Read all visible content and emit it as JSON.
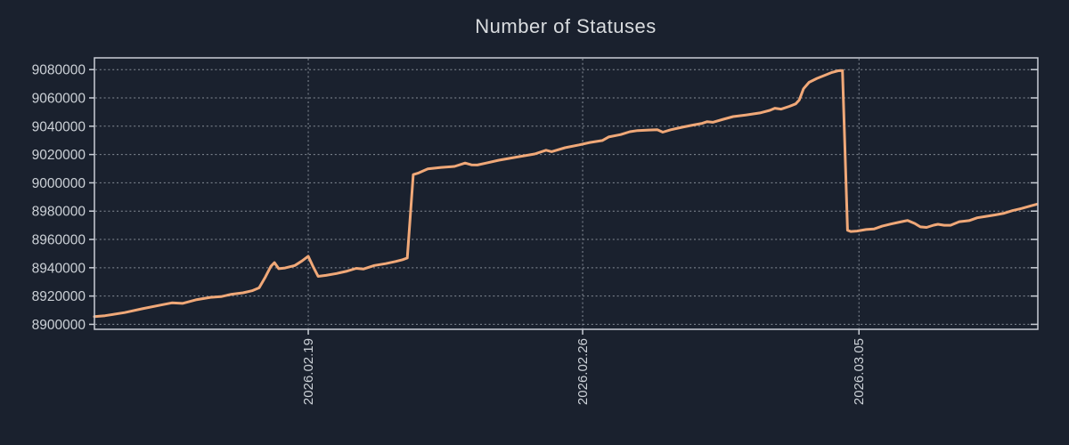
{
  "page": {
    "background": "#1a212e"
  },
  "chart_data": {
    "type": "line",
    "title": "Number of Statuses",
    "legend": "none",
    "grid": "dotted",
    "colors": {
      "line": "#f0a878",
      "background": "#1a212e",
      "gridline": "#99a0aa",
      "axis_border": "#c9ced6",
      "text": "#ccd1d7",
      "title_text": "#d9dcdf"
    },
    "x_axis": {
      "kind": "time",
      "span_days": 24,
      "tick_label_rotation_deg": -90,
      "ticks": [
        {
          "label": "2026.02.19",
          "t": 5.44
        },
        {
          "label": "2026.02.26",
          "t": 12.42
        },
        {
          "label": "2026.03.05",
          "t": 19.45
        }
      ]
    },
    "y_axis": {
      "range": [
        8896500,
        9088300
      ],
      "ticks": [
        8900000,
        8920000,
        8940000,
        8960000,
        8980000,
        9000000,
        9020000,
        9040000,
        9060000,
        9080000
      ]
    },
    "series": [
      {
        "name": "Number of Statuses",
        "points": [
          [
            0.0,
            8905500
          ],
          [
            0.27,
            8906100
          ],
          [
            0.77,
            8908300
          ],
          [
            1.22,
            8911000
          ],
          [
            1.68,
            8913600
          ],
          [
            1.97,
            8915200
          ],
          [
            2.24,
            8914800
          ],
          [
            2.58,
            8917300
          ],
          [
            2.95,
            8919100
          ],
          [
            3.22,
            8919600
          ],
          [
            3.49,
            8921300
          ],
          [
            3.78,
            8922300
          ],
          [
            4.01,
            8923700
          ],
          [
            4.19,
            8925800
          ],
          [
            4.35,
            8933500
          ],
          [
            4.49,
            8941000
          ],
          [
            4.58,
            8943600
          ],
          [
            4.69,
            8939300
          ],
          [
            4.85,
            8939800
          ],
          [
            5.1,
            8941600
          ],
          [
            5.28,
            8944800
          ],
          [
            5.44,
            8948100
          ],
          [
            5.55,
            8941500
          ],
          [
            5.69,
            8933900
          ],
          [
            5.89,
            8934600
          ],
          [
            6.16,
            8935900
          ],
          [
            6.43,
            8937600
          ],
          [
            6.66,
            8939600
          ],
          [
            6.84,
            8939100
          ],
          [
            7.12,
            8941600
          ],
          [
            7.41,
            8942900
          ],
          [
            7.66,
            8944400
          ],
          [
            7.84,
            8945700
          ],
          [
            7.96,
            8946900
          ],
          [
            8.11,
            9005800
          ],
          [
            8.25,
            9007000
          ],
          [
            8.48,
            9009800
          ],
          [
            8.82,
            9010900
          ],
          [
            9.16,
            9011600
          ],
          [
            9.43,
            9014000
          ],
          [
            9.59,
            9012700
          ],
          [
            9.74,
            9012600
          ],
          [
            9.97,
            9014000
          ],
          [
            10.29,
            9016000
          ],
          [
            10.74,
            9018200
          ],
          [
            11.2,
            9020400
          ],
          [
            11.49,
            9023000
          ],
          [
            11.63,
            9022000
          ],
          [
            11.97,
            9024800
          ],
          [
            12.33,
            9026800
          ],
          [
            12.6,
            9028500
          ],
          [
            12.92,
            9029900
          ],
          [
            13.08,
            9032400
          ],
          [
            13.39,
            9034100
          ],
          [
            13.62,
            9036100
          ],
          [
            13.82,
            9036900
          ],
          [
            14.1,
            9037300
          ],
          [
            14.32,
            9037500
          ],
          [
            14.46,
            9035800
          ],
          [
            14.66,
            9037500
          ],
          [
            14.96,
            9039300
          ],
          [
            15.23,
            9040800
          ],
          [
            15.46,
            9042000
          ],
          [
            15.59,
            9043200
          ],
          [
            15.73,
            9042800
          ],
          [
            16.0,
            9044900
          ],
          [
            16.25,
            9046800
          ],
          [
            16.57,
            9047900
          ],
          [
            16.93,
            9049400
          ],
          [
            17.18,
            9051200
          ],
          [
            17.31,
            9052700
          ],
          [
            17.47,
            9052100
          ],
          [
            17.68,
            9054000
          ],
          [
            17.84,
            9055800
          ],
          [
            17.93,
            9058500
          ],
          [
            18.04,
            9066500
          ],
          [
            18.18,
            9071000
          ],
          [
            18.38,
            9073800
          ],
          [
            18.58,
            9076000
          ],
          [
            18.76,
            9078000
          ],
          [
            18.92,
            9079200
          ],
          [
            19.03,
            9079400
          ],
          [
            19.16,
            8966500
          ],
          [
            19.24,
            8965600
          ],
          [
            19.4,
            8965900
          ],
          [
            19.63,
            8967000
          ],
          [
            19.83,
            8967400
          ],
          [
            20.04,
            8969400
          ],
          [
            20.26,
            8970900
          ],
          [
            20.49,
            8972300
          ],
          [
            20.69,
            8973400
          ],
          [
            20.87,
            8971300
          ],
          [
            21.01,
            8968900
          ],
          [
            21.17,
            8968500
          ],
          [
            21.35,
            8970100
          ],
          [
            21.46,
            8970700
          ],
          [
            21.62,
            8970000
          ],
          [
            21.78,
            8970000
          ],
          [
            22.0,
            8972500
          ],
          [
            22.25,
            8973300
          ],
          [
            22.46,
            8975300
          ],
          [
            22.68,
            8976300
          ],
          [
            22.91,
            8977300
          ],
          [
            23.14,
            8978500
          ],
          [
            23.36,
            8980400
          ],
          [
            23.59,
            8981900
          ],
          [
            23.82,
            8983700
          ],
          [
            23.98,
            8984900
          ]
        ]
      }
    ]
  }
}
